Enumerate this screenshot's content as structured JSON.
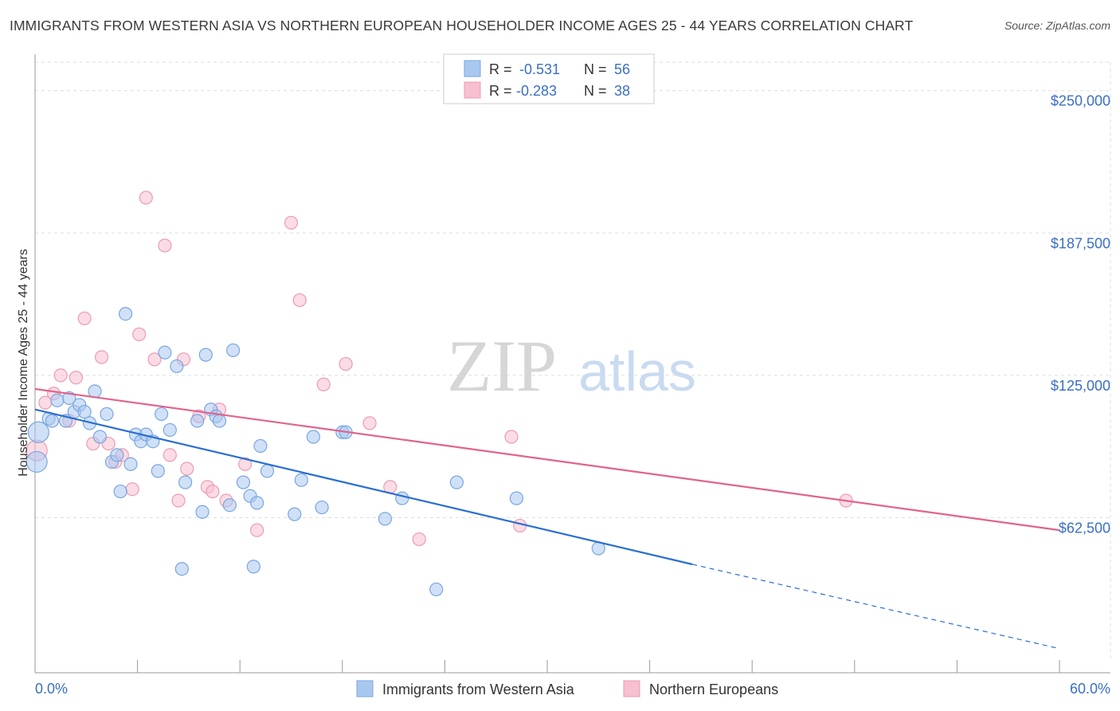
{
  "title": "IMMIGRANTS FROM WESTERN ASIA VS NORTHERN EUROPEAN HOUSEHOLDER INCOME AGES 25 - 44 YEARS CORRELATION CHART",
  "source": "Source: ZipAtlas.com",
  "watermark": {
    "zip": "ZIP",
    "atlas": "atlas"
  },
  "colors": {
    "series1_fill": "#a9c8f0",
    "series1_stroke": "#7aa6e0",
    "series1_line": "#2a6fd1",
    "series2_fill": "#f7bfd0",
    "series2_stroke": "#ec9bb5",
    "series2_line": "#e0638e",
    "tick_text": "#3a6fc4",
    "grid": "#dddddd"
  },
  "legend": {
    "rows": [
      {
        "r_label": "R =",
        "r_value": "-0.531",
        "n_label": "N =",
        "n_value": "56"
      },
      {
        "r_label": "R =",
        "r_value": "-0.283",
        "n_label": "N =",
        "n_value": "38"
      }
    ]
  },
  "chart_data": {
    "type": "scatter",
    "title": "IMMIGRANTS FROM WESTERN ASIA VS NORTHERN EUROPEAN HOUSEHOLDER INCOME AGES 25 - 44 YEARS CORRELATION CHART",
    "xlabel": "",
    "ylabel": "Householder Income Ages 25 - 44 years",
    "xlim": [
      0,
      60
    ],
    "ylim": [
      0,
      262500
    ],
    "x_tick_labels": [
      "0.0%",
      "60.0%"
    ],
    "y_ticks": [
      62500,
      125000,
      187500,
      250000
    ],
    "y_tick_labels": [
      "$62,500",
      "$125,000",
      "$187,500",
      "$250,000"
    ],
    "grid": true,
    "legend_position": "top-center",
    "series": [
      {
        "name": "Immigrants from Western Asia",
        "r": -0.531,
        "n": 56,
        "trend": {
          "x0": 0,
          "y0": 110000,
          "x1": 38.5,
          "y1": 42000,
          "dash_to_x": 60,
          "dash_to_y": 5000
        },
        "points": [
          [
            0.2,
            100000,
            22
          ],
          [
            0.1,
            87000,
            22
          ],
          [
            0.8,
            106000,
            12
          ],
          [
            1.0,
            105000,
            12
          ],
          [
            1.3,
            114000,
            12
          ],
          [
            1.8,
            105000,
            12
          ],
          [
            2.0,
            115000,
            12
          ],
          [
            2.3,
            109000,
            12
          ],
          [
            2.6,
            112000,
            12
          ],
          [
            2.9,
            109000,
            12
          ],
          [
            3.2,
            104000,
            12
          ],
          [
            3.5,
            118000,
            12
          ],
          [
            3.8,
            98000,
            12
          ],
          [
            4.2,
            108000,
            12
          ],
          [
            4.5,
            87000,
            12
          ],
          [
            4.8,
            90000,
            12
          ],
          [
            5.0,
            74000,
            12
          ],
          [
            5.3,
            152000,
            12
          ],
          [
            5.6,
            86000,
            12
          ],
          [
            5.9,
            99000,
            12
          ],
          [
            6.2,
            96000,
            12
          ],
          [
            6.5,
            99000,
            12
          ],
          [
            6.9,
            96000,
            12
          ],
          [
            7.2,
            83000,
            12
          ],
          [
            7.4,
            108000,
            12
          ],
          [
            7.6,
            135000,
            12
          ],
          [
            7.9,
            101000,
            12
          ],
          [
            8.3,
            129000,
            12
          ],
          [
            8.6,
            40000,
            12
          ],
          [
            8.8,
            78000,
            12
          ],
          [
            9.5,
            105000,
            12
          ],
          [
            9.8,
            65000,
            12
          ],
          [
            10.0,
            134000,
            12
          ],
          [
            10.3,
            110000,
            12
          ],
          [
            10.6,
            107000,
            12
          ],
          [
            10.8,
            105000,
            12
          ],
          [
            11.4,
            68000,
            12
          ],
          [
            11.6,
            136000,
            12
          ],
          [
            12.2,
            78000,
            12
          ],
          [
            12.6,
            72000,
            12
          ],
          [
            13.0,
            69000,
            12
          ],
          [
            13.2,
            94000,
            12
          ],
          [
            13.6,
            83000,
            12
          ],
          [
            12.8,
            41000,
            12
          ],
          [
            15.2,
            64000,
            12
          ],
          [
            15.6,
            79000,
            12
          ],
          [
            16.3,
            98000,
            12
          ],
          [
            16.8,
            67000,
            12
          ],
          [
            18.0,
            100000,
            12
          ],
          [
            18.2,
            100000,
            12
          ],
          [
            20.5,
            62000,
            12
          ],
          [
            21.5,
            71000,
            12
          ],
          [
            23.5,
            31000,
            12
          ],
          [
            24.7,
            78000,
            12
          ],
          [
            28.2,
            71000,
            12
          ],
          [
            33.0,
            49000,
            12
          ]
        ]
      },
      {
        "name": "Northern Europeans",
        "r": -0.283,
        "n": 38,
        "trend": {
          "x0": 0,
          "y0": 119000,
          "x1": 60,
          "y1": 57000
        },
        "points": [
          [
            0.1,
            92000,
            22
          ],
          [
            0.6,
            113000,
            12
          ],
          [
            1.1,
            117000,
            12
          ],
          [
            1.5,
            125000,
            12
          ],
          [
            2.0,
            105000,
            12
          ],
          [
            2.4,
            124000,
            12
          ],
          [
            2.9,
            150000,
            12
          ],
          [
            3.4,
            95000,
            12
          ],
          [
            3.9,
            133000,
            12
          ],
          [
            4.3,
            95000,
            12
          ],
          [
            4.7,
            87000,
            12
          ],
          [
            5.1,
            90000,
            12
          ],
          [
            5.7,
            75000,
            12
          ],
          [
            6.1,
            143000,
            12
          ],
          [
            6.5,
            203000,
            12
          ],
          [
            7.0,
            132000,
            12
          ],
          [
            7.6,
            182000,
            12
          ],
          [
            7.9,
            90000,
            12
          ],
          [
            8.4,
            70000,
            12
          ],
          [
            8.7,
            132000,
            12
          ],
          [
            8.9,
            84000,
            12
          ],
          [
            9.6,
            107000,
            12
          ],
          [
            10.1,
            76000,
            12
          ],
          [
            10.4,
            74000,
            12
          ],
          [
            10.8,
            110000,
            12
          ],
          [
            11.2,
            70000,
            12
          ],
          [
            12.3,
            86000,
            12
          ],
          [
            13.0,
            57000,
            12
          ],
          [
            15.0,
            192000,
            12
          ],
          [
            15.5,
            158000,
            12
          ],
          [
            16.9,
            121000,
            12
          ],
          [
            18.2,
            130000,
            12
          ],
          [
            19.6,
            104000,
            12
          ],
          [
            20.8,
            76000,
            12
          ],
          [
            22.5,
            53000,
            12
          ],
          [
            27.9,
            98000,
            12
          ],
          [
            28.4,
            59000,
            12
          ],
          [
            47.5,
            70000,
            12
          ]
        ]
      }
    ]
  }
}
